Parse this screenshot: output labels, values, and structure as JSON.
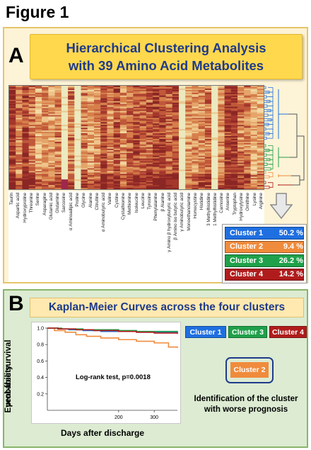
{
  "figure": {
    "title": "Figure 1"
  },
  "panel_a": {
    "letter": "A",
    "title_line1": "Hierarchical Clustering Analysis",
    "title_line2": "with 39 Amino Acid Metabolites",
    "metabolites": [
      "Taurin",
      "Aspartic acid",
      "Hydroxyproline",
      "Threonine",
      "Serine",
      "Asparagine",
      "Glutamic acid",
      "Glutamine",
      "Sarcosine",
      "α Aminoadipic acid",
      "Proline",
      "Glycine",
      "Alanine",
      "Citrulline",
      "α Aminobutyric acid",
      "Valine",
      "Cystine",
      "Cystathionine",
      "Methionine",
      "Isoleucine",
      "Leucine",
      "Tyrosine",
      "Phenylalanine",
      "β Alanine",
      "γ Amino β hydroxybutyric acid",
      "β Amino iso butyric acid",
      "γ Aminobutyric acid",
      "Monoethanolamine",
      "Homocystine",
      "Histidine",
      "3 Methylhistidine",
      "1 Methylhistidine",
      "Carnosine",
      "Anserine",
      "Tryptophan",
      "Hydroxylysine",
      "Ornithine",
      "Lysine",
      "Arginine"
    ],
    "clusters": [
      {
        "name": "Cluster 1",
        "percent": "50.2 %",
        "color": "#1f6fe0"
      },
      {
        "name": "Cluster 2",
        "percent": "9.4 %",
        "color": "#f08b3c"
      },
      {
        "name": "Cluster 3",
        "percent": "26.2 %",
        "color": "#1fa04a"
      },
      {
        "name": "Cluster 4",
        "percent": "14.2 %",
        "color": "#b01c1c"
      }
    ]
  },
  "panel_b": {
    "letter": "B",
    "title": "Kaplan-Meier Curves across the four clusters",
    "ylabel_line1": "Event-free survival",
    "ylabel_line2": "probability",
    "xlabel": "Days after discharge",
    "annotation": "Log-rank test, p=0.0018",
    "cluster_labels": [
      "Cluster 1",
      "Cluster 3",
      "Cluster 4"
    ],
    "highlight_label": "Cluster 2",
    "identification_line1": "Identification of the cluster",
    "identification_line2": "with worse prognosis"
  },
  "chart_data": {
    "type": "line",
    "x_ticks": [
      200,
      300
    ],
    "y_ticks": [
      "0.2",
      "0.4",
      "0.6",
      "0.8",
      "1.0"
    ],
    "xlim": [
      0,
      365
    ],
    "ylim": [
      0.0,
      1.0
    ],
    "series": [
      {
        "name": "Cluster 1",
        "color": "#1f6fe0",
        "x": [
          0,
          30,
          60,
          100,
          150,
          200,
          250,
          300,
          365
        ],
        "y": [
          1.0,
          0.99,
          0.98,
          0.97,
          0.96,
          0.96,
          0.95,
          0.95,
          0.94
        ]
      },
      {
        "name": "Cluster 2",
        "color": "#f08b3c",
        "x": [
          0,
          20,
          50,
          80,
          110,
          150,
          200,
          250,
          300,
          340,
          365
        ],
        "y": [
          1.0,
          0.97,
          0.95,
          0.92,
          0.9,
          0.88,
          0.86,
          0.84,
          0.82,
          0.77,
          0.76
        ]
      },
      {
        "name": "Cluster 3",
        "color": "#1fa04a",
        "x": [
          0,
          40,
          100,
          150,
          200,
          250,
          300,
          365
        ],
        "y": [
          1.0,
          0.99,
          0.98,
          0.98,
          0.97,
          0.96,
          0.96,
          0.95
        ]
      },
      {
        "name": "Cluster 4",
        "color": "#b01c1c",
        "x": [
          0,
          30,
          80,
          130,
          200,
          250,
          300,
          365
        ],
        "y": [
          1.0,
          0.99,
          0.98,
          0.97,
          0.96,
          0.95,
          0.94,
          0.93
        ]
      }
    ]
  }
}
